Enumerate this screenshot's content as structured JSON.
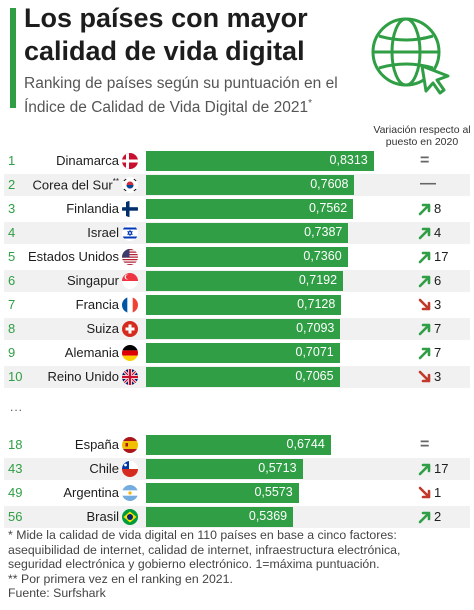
{
  "header": {
    "title": "Los países con mayor calidad de vida digital",
    "subtitle": "Ranking de países según su puntuación en el Índice de Calidad de Vida Digital de 2021",
    "subtitle_marker": "*",
    "variation_label": "Variación respecto al puesto en 2020"
  },
  "gap_marker": "...",
  "footnotes": {
    "line1": "*   Mide la calidad de vida digital en 110 países en base a cinco factores:",
    "line2": "    asequibilidad de internet, calidad de internet, infraestructura electrónica,",
    "line3": "    seguridad electrónica y gobierno electrónico. 1=máxima puntuación.",
    "line4": "** Por primera vez en el ranking en 2021.",
    "source": "Fuente: Surfshark"
  },
  "colors": {
    "accent": "#2f9e44",
    "up": "#2f9e44",
    "down": "#c0392b",
    "neutral": "#666666"
  },
  "chart_data": {
    "type": "bar",
    "orientation": "horizontal",
    "title": "Los países con mayor calidad de vida digital",
    "subtitle": "Ranking de países según su puntuación en el Índice de Calidad de Vida Digital de 2021*",
    "xlim": [
      0,
      1
    ],
    "rows": [
      {
        "rank": "1",
        "country": "Dinamarca",
        "flag": "flag-denmark",
        "value": 0.8313,
        "label": "0,8313",
        "change": "equal",
        "change_value": ""
      },
      {
        "rank": "2",
        "country": "Corea del Sur",
        "country_marker": "**",
        "flag": "flag-south-korea",
        "value": 0.7608,
        "label": "0,7608",
        "change": "new",
        "change_value": ""
      },
      {
        "rank": "3",
        "country": "Finlandia",
        "flag": "flag-finland",
        "value": 0.7562,
        "label": "0,7562",
        "change": "up",
        "change_value": "8"
      },
      {
        "rank": "4",
        "country": "Israel",
        "flag": "flag-israel",
        "value": 0.7387,
        "label": "0,7387",
        "change": "up",
        "change_value": "4"
      },
      {
        "rank": "5",
        "country": "Estados Unidos",
        "flag": "flag-usa",
        "value": 0.736,
        "label": "0,7360",
        "change": "up",
        "change_value": "17"
      },
      {
        "rank": "6",
        "country": "Singapur",
        "flag": "flag-singapore",
        "value": 0.7192,
        "label": "0,7192",
        "change": "up",
        "change_value": "6"
      },
      {
        "rank": "7",
        "country": "Francia",
        "flag": "flag-france",
        "value": 0.7128,
        "label": "0,7128",
        "change": "down",
        "change_value": "3"
      },
      {
        "rank": "8",
        "country": "Suiza",
        "flag": "flag-switzerland",
        "value": 0.7093,
        "label": "0,7093",
        "change": "up",
        "change_value": "7"
      },
      {
        "rank": "9",
        "country": "Alemania",
        "flag": "flag-germany",
        "value": 0.7071,
        "label": "0,7071",
        "change": "up",
        "change_value": "7"
      },
      {
        "rank": "10",
        "country": "Reino Unido",
        "flag": "flag-uk",
        "value": 0.7065,
        "label": "0,7065",
        "change": "down",
        "change_value": "3"
      },
      {
        "rank": "18",
        "country": "España",
        "flag": "flag-spain",
        "value": 0.6744,
        "label": "0,6744",
        "change": "equal",
        "change_value": ""
      },
      {
        "rank": "43",
        "country": "Chile",
        "flag": "flag-chile",
        "value": 0.5713,
        "label": "0,5713",
        "change": "up",
        "change_value": "17"
      },
      {
        "rank": "49",
        "country": "Argentina",
        "flag": "flag-argentina",
        "value": 0.5573,
        "label": "0,5573",
        "change": "down",
        "change_value": "1"
      },
      {
        "rank": "56",
        "country": "Brasil",
        "flag": "flag-brazil",
        "value": 0.5369,
        "label": "0,5369",
        "change": "up",
        "change_value": "2"
      }
    ]
  }
}
